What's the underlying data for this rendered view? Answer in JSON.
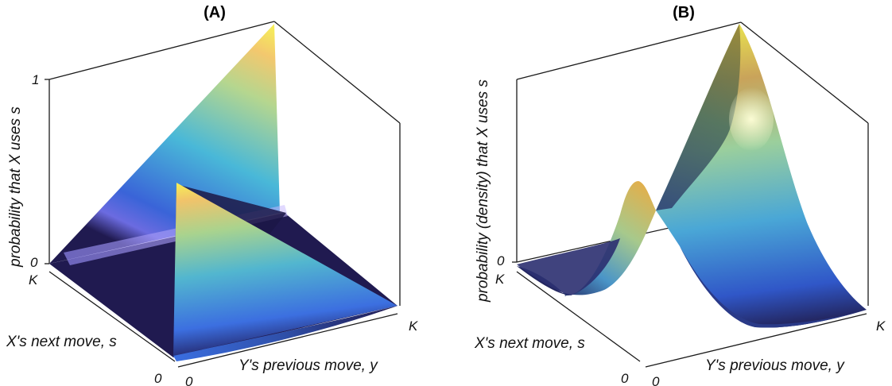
{
  "panels": [
    {
      "title": "(A)",
      "z_label": "probability that X uses s",
      "x_label": "X's next move, s",
      "y_label": "Y's previous move, y",
      "ticks": {
        "z_top": "1",
        "z_bottom": "0",
        "s_K": "K",
        "s_0": "0",
        "y_0": "0",
        "y_K": "K"
      }
    },
    {
      "title": "(B)",
      "z_label": "probability (density) that X uses s",
      "x_label": "X's next move, s",
      "y_label": "Y's previous move, y",
      "ticks": {
        "z_bottom": "0",
        "s_K": "K",
        "s_0": "0",
        "y_0": "0",
        "y_K": "K"
      }
    }
  ],
  "colormap": [
    "#201a50",
    "#2e3f8f",
    "#3c7de0",
    "#4fb3d6",
    "#9bd0a0",
    "#f2c870",
    "#f4ef55"
  ]
}
